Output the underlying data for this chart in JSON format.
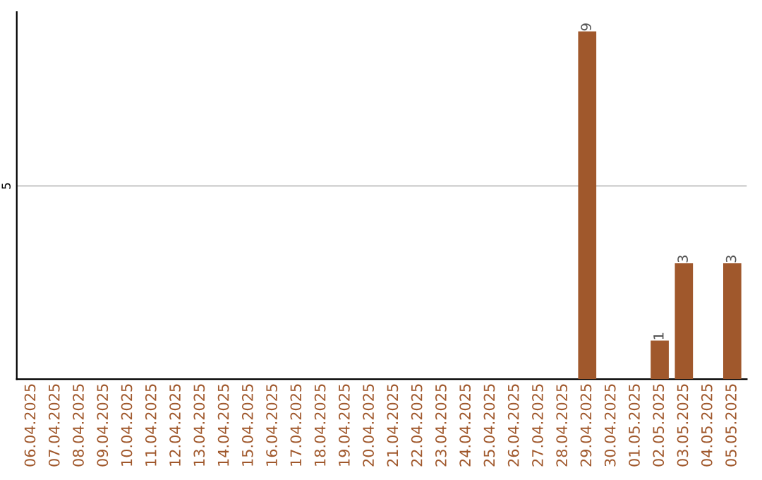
{
  "chart_data": {
    "type": "bar",
    "categories": [
      "06.04.2025",
      "07.04.2025",
      "08.04.2025",
      "09.04.2025",
      "10.04.2025",
      "11.04.2025",
      "12.04.2025",
      "13.04.2025",
      "14.04.2025",
      "15.04.2025",
      "16.04.2025",
      "17.04.2025",
      "18.04.2025",
      "19.04.2025",
      "20.04.2025",
      "21.04.2025",
      "22.04.2025",
      "23.04.2025",
      "24.04.2025",
      "25.04.2025",
      "26.04.2025",
      "27.04.2025",
      "28.04.2025",
      "29.04.2025",
      "30.04.2025",
      "01.05.2025",
      "02.05.2025",
      "03.05.2025",
      "04.05.2025",
      "05.05.2025"
    ],
    "values": [
      null,
      null,
      null,
      null,
      null,
      null,
      null,
      null,
      null,
      null,
      null,
      null,
      null,
      null,
      null,
      null,
      null,
      null,
      null,
      null,
      null,
      null,
      null,
      9,
      null,
      null,
      1,
      3,
      null,
      3
    ],
    "data_labels": true,
    "color": "#a0582c",
    "ylim": [
      0,
      9.5
    ],
    "yticks": [
      5
    ],
    "grid": "y"
  }
}
